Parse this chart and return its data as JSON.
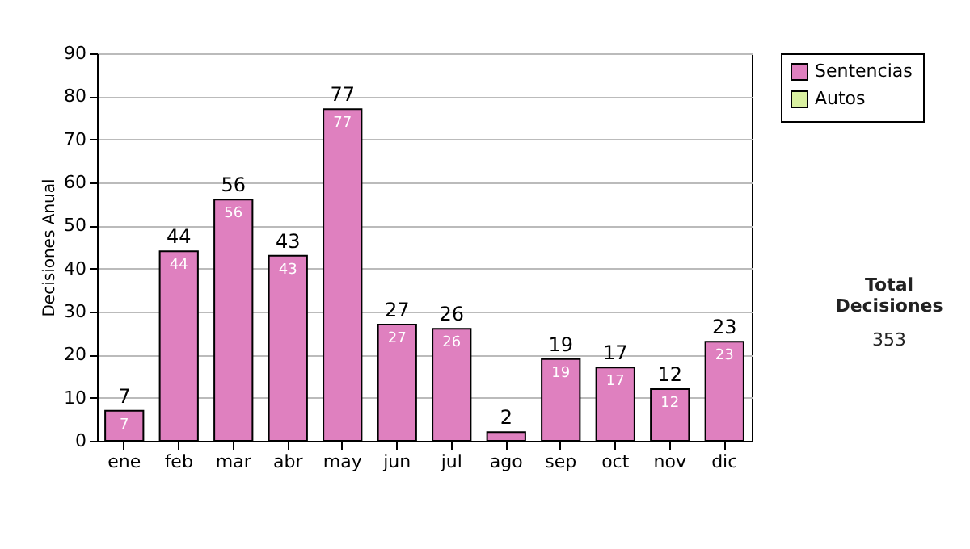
{
  "chart_data": {
    "type": "bar",
    "ylabel": "Decisiones Anual",
    "categories": [
      "ene",
      "feb",
      "mar",
      "abr",
      "may",
      "jun",
      "jul",
      "ago",
      "sep",
      "oct",
      "nov",
      "dic"
    ],
    "series": [
      {
        "name": "Sentencias",
        "color": "#df80bf",
        "values": [
          7,
          44,
          56,
          43,
          77,
          27,
          26,
          2,
          19,
          17,
          12,
          23
        ],
        "value_labels": [
          "7",
          "44",
          "56",
          "43",
          "77",
          "27",
          "26",
          null,
          "19",
          "17",
          "12",
          "23"
        ]
      },
      {
        "name": "Autos",
        "color": "#d9f0a0",
        "values": [
          null,
          null,
          null,
          null,
          null,
          null,
          null,
          null,
          null,
          null,
          null,
          null
        ]
      }
    ],
    "totals": [
      "7",
      "44",
      "56",
      "43",
      "77",
      "27",
      "26",
      "2",
      "19",
      "17",
      "12",
      "23"
    ],
    "ylim": [
      0,
      90
    ],
    "yticks": [
      0,
      10,
      20,
      30,
      40,
      50,
      60,
      70,
      80,
      90
    ],
    "grid": "y",
    "legend": "right",
    "annotations": [
      "Total Decisiones",
      "353"
    ]
  }
}
